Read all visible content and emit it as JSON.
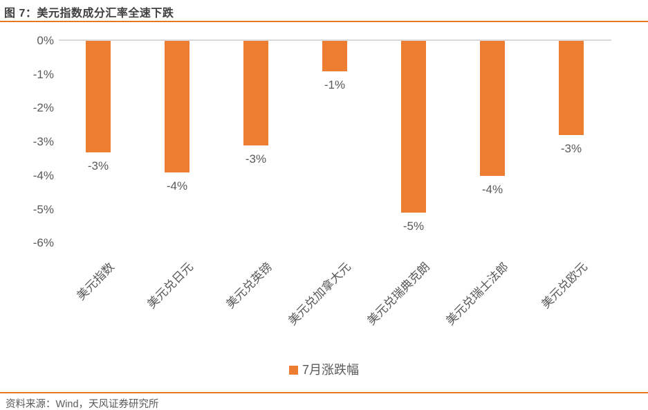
{
  "header": {
    "title": "图 7：美元指数成分汇率全速下跌"
  },
  "chart_data": {
    "type": "bar",
    "title": "图 7：美元指数成分汇率全速下跌",
    "categories": [
      "美元指数",
      "美元兑日元",
      "美元兑英镑",
      "美元兑加拿大元",
      "美元兑瑞典克朗",
      "美元兑瑞士法郎",
      "美元兑欧元"
    ],
    "series": [
      {
        "name": "7月涨跌幅",
        "values": [
          -3.3,
          -3.9,
          -3.1,
          -0.9,
          -5.1,
          -4.0,
          -2.8
        ],
        "data_labels": [
          "-3%",
          "-4%",
          "-3%",
          "-1%",
          "-5%",
          "-4%",
          "-3%"
        ]
      }
    ],
    "xlabel": "",
    "ylabel": "",
    "y_ticks": [
      "0%",
      "-1%",
      "-2%",
      "-3%",
      "-4%",
      "-5%",
      "-6%"
    ],
    "ylim": [
      -6,
      0
    ],
    "grid": "zero-line-only",
    "legend_position": "bottom",
    "bar_color": "#ed7d31"
  },
  "legend": {
    "label": "7月涨跌幅"
  },
  "footer": {
    "source": "资料来源：Wind，天风证券研究所"
  },
  "colors": {
    "bar_orange": "#ed7d31",
    "rule_orange": "#e87722",
    "title_text": "#3f3f3f",
    "axis_text": "#595959",
    "zero_line": "#d9d9d9"
  }
}
